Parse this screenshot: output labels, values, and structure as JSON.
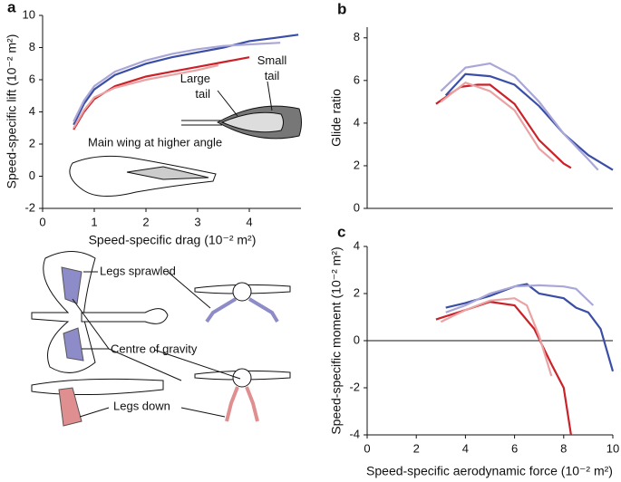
{
  "chart_data": [
    {
      "type": "line",
      "panel": "a",
      "x_label": "Speed-specific drag (10⁻² m²)",
      "y_label": "Speed-specific lift (10⁻² m²)",
      "xlim": [
        0,
        5
      ],
      "ylim": [
        -2,
        10
      ],
      "xticks": [
        0,
        1,
        2,
        3,
        4
      ],
      "yticks": [
        -2,
        0,
        2,
        4,
        6,
        8,
        10
      ],
      "annotations": [
        "Large tail",
        "Small tail",
        "Main wing at higher angle"
      ],
      "series": [
        {
          "color": "#3b4ea5",
          "x": [
            0.6,
            0.8,
            1,
            1.4,
            2,
            2.5,
            3,
            3.5,
            4,
            4.5,
            4.95
          ],
          "values": [
            3.2,
            4.5,
            5.4,
            6.3,
            7,
            7.4,
            7.7,
            8,
            8.4,
            8.6,
            8.8
          ]
        },
        {
          "color": "#aaa7d8",
          "x": [
            0.6,
            0.8,
            1,
            1.4,
            2,
            2.5,
            3,
            3.5,
            4,
            4.6
          ],
          "values": [
            3.4,
            4.7,
            5.6,
            6.5,
            7.2,
            7.6,
            7.9,
            8.1,
            8.2,
            8.3
          ]
        },
        {
          "color": "#cb2128",
          "x": [
            0.6,
            0.8,
            1,
            1.4,
            2,
            2.5,
            3,
            3.5,
            4
          ],
          "values": [
            2.9,
            4,
            4.8,
            5.6,
            6.2,
            6.5,
            6.8,
            7.1,
            7.4
          ]
        },
        {
          "color": "#eaa3a4",
          "x": [
            0.6,
            0.8,
            1,
            1.4,
            2,
            2.5,
            3,
            3.4
          ],
          "values": [
            3,
            4.1,
            4.9,
            5.5,
            6,
            6.3,
            6.6,
            6.9
          ]
        }
      ]
    },
    {
      "type": "line",
      "panel": "b",
      "y_label": "Glide ratio",
      "xlim": [
        0,
        10
      ],
      "ylim": [
        0,
        8.5
      ],
      "yticks": [
        0,
        2,
        4,
        6,
        8
      ],
      "series": [
        {
          "color": "#3b4ea5",
          "x": [
            3.2,
            4,
            5,
            6,
            7,
            8,
            9,
            10
          ],
          "values": [
            5.3,
            6.3,
            6.2,
            5.8,
            4.8,
            3.5,
            2.5,
            1.8
          ]
        },
        {
          "color": "#aaa7d8",
          "x": [
            3,
            4,
            5,
            6,
            7,
            8,
            9,
            9.4
          ],
          "values": [
            5.5,
            6.6,
            6.8,
            6.2,
            5,
            3.5,
            2.3,
            1.8
          ]
        },
        {
          "color": "#cb2128",
          "x": [
            2.8,
            3.8,
            4.5,
            5,
            6,
            7,
            8,
            8.3
          ],
          "values": [
            4.9,
            5.7,
            5.8,
            5.8,
            4.9,
            3.2,
            2.1,
            1.9
          ]
        },
        {
          "color": "#eaa3a4",
          "x": [
            3,
            4,
            5,
            6,
            7,
            7.6
          ],
          "values": [
            5,
            5.9,
            5.5,
            4.6,
            2.8,
            2.2
          ]
        }
      ]
    },
    {
      "type": "line",
      "panel": "c",
      "x_label": "Speed-specific aerodynamic force (10⁻² m²)",
      "y_label": "Speed-specific moment (10⁻² m²)",
      "xlim": [
        0,
        10
      ],
      "ylim": [
        -4,
        4
      ],
      "xticks": [
        0,
        2,
        4,
        6,
        8,
        10
      ],
      "yticks": [
        -4,
        -2,
        0,
        2,
        4
      ],
      "zero_line": true,
      "series": [
        {
          "color": "#3b4ea5",
          "x": [
            3.2,
            4,
            5,
            6,
            6.5,
            7,
            8,
            8.5,
            9,
            9.5,
            10
          ],
          "values": [
            1.4,
            1.6,
            1.9,
            2.3,
            2.4,
            2,
            1.8,
            1.4,
            1.2,
            0.5,
            -1.3
          ]
        },
        {
          "color": "#aaa7d8",
          "x": [
            3.2,
            4,
            5,
            6,
            7,
            8,
            8.5,
            9.2
          ],
          "values": [
            1.2,
            1.5,
            2,
            2.3,
            2.35,
            2.3,
            2.2,
            1.5
          ]
        },
        {
          "color": "#cb2128",
          "x": [
            2.8,
            4,
            5,
            6,
            6.8,
            7.5,
            8,
            8.3
          ],
          "values": [
            0.9,
            1.3,
            1.65,
            1.5,
            0.5,
            -1,
            -2,
            -4
          ]
        },
        {
          "color": "#eaa3a4",
          "x": [
            3,
            4,
            5,
            6,
            6.5,
            7,
            7.5
          ],
          "values": [
            0.8,
            1.3,
            1.7,
            1.8,
            1.5,
            0.2,
            -1.5
          ]
        }
      ]
    }
  ],
  "diagram": {
    "labels": [
      "Legs sprawled",
      "Centre of gravity",
      "Legs down"
    ]
  }
}
